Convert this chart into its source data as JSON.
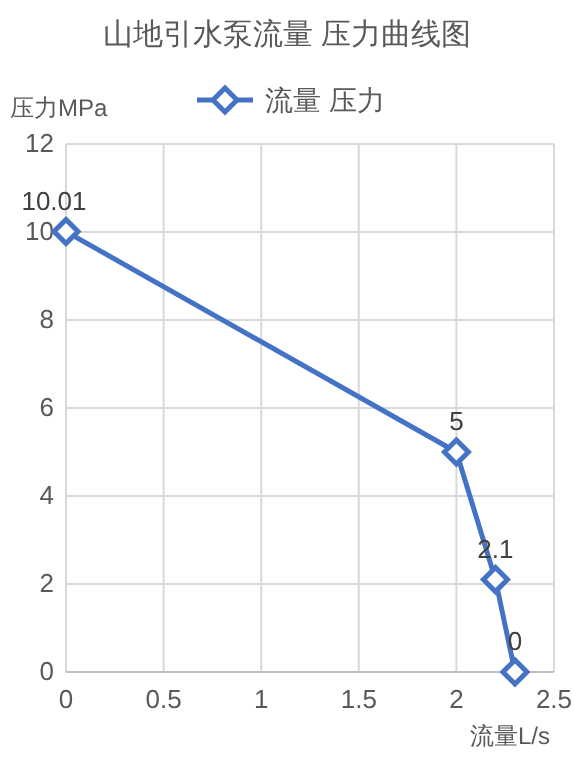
{
  "chart_data": {
    "type": "line",
    "title": "山地引水泵流量 压力曲线图",
    "xlabel": "流量L/s",
    "ylabel": "压力MPa",
    "x": [
      0,
      2,
      2.2,
      2.3
    ],
    "series": [
      {
        "name": "流量 压力",
        "color": "#4472c4",
        "values": [
          10.01,
          5,
          2.1,
          0
        ]
      }
    ],
    "xlim": [
      0,
      2.5
    ],
    "xticks": [
      0,
      0.5,
      1,
      1.5,
      2,
      2.5
    ],
    "ylim": [
      0,
      12
    ],
    "yticks": [
      0,
      2,
      4,
      6,
      8,
      10,
      12
    ],
    "grid": true,
    "legend": "top",
    "marker": "diamond",
    "line_style": "solid",
    "data_labels": true
  }
}
